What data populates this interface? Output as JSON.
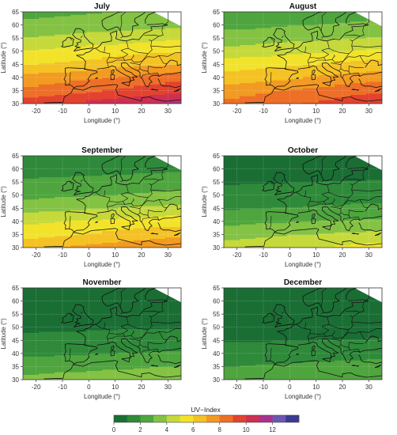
{
  "panels": [
    {
      "title": "July",
      "month_index": 0
    },
    {
      "title": "August",
      "month_index": 1
    },
    {
      "title": "September",
      "month_index": 2
    },
    {
      "title": "October",
      "month_index": 3
    },
    {
      "title": "November",
      "month_index": 4
    },
    {
      "title": "December",
      "month_index": 5
    }
  ],
  "axes": {
    "xlabel": "Longitude (°)",
    "ylabel": "Latitude (°)",
    "x_ticks": [
      -20,
      -10,
      0,
      10,
      20,
      30
    ],
    "y_ticks": [
      30,
      35,
      40,
      45,
      50,
      55,
      60,
      65
    ],
    "x_range": [
      -25,
      35
    ],
    "y_range": [
      30,
      65
    ]
  },
  "legend": {
    "title": "UV−Index",
    "ticks": [
      0,
      2,
      4,
      6,
      8,
      10,
      12
    ],
    "range": [
      0,
      13
    ],
    "colors": [
      "#1a6e34",
      "#2f8a3a",
      "#4fa53e",
      "#84c244",
      "#c6d93a",
      "#f2e32a",
      "#f4c224",
      "#f29a22",
      "#ee6f27",
      "#e2432f",
      "#cf2f52",
      "#a8338c",
      "#6b57b0",
      "#3b3c8e"
    ]
  },
  "chart_data": {
    "type": "heatmap",
    "variable": "UV−Index",
    "months": [
      "July",
      "August",
      "September",
      "October",
      "November",
      "December"
    ],
    "latitudes": [
      30,
      35,
      40,
      45,
      50,
      55,
      60,
      65
    ],
    "uv_index_by_latitude": [
      {
        "month": "July",
        "values": [
          10.5,
          9,
          8,
          6.5,
          5.5,
          4.5,
          3.5,
          3
        ]
      },
      {
        "month": "August",
        "values": [
          9,
          8.2,
          7,
          6,
          4.8,
          3.8,
          3,
          2.4
        ]
      },
      {
        "month": "September",
        "values": [
          7.5,
          6.2,
          5.2,
          4,
          3,
          2.4,
          1.7,
          1.2
        ]
      },
      {
        "month": "October",
        "values": [
          5,
          4,
          3,
          2.1,
          1.5,
          1,
          0.6,
          0.3
        ]
      },
      {
        "month": "November",
        "values": [
          3.6,
          2.8,
          2,
          1.4,
          0.9,
          0.5,
          0.3,
          0.2
        ]
      },
      {
        "month": "December",
        "values": [
          2.8,
          2.2,
          1.6,
          1,
          0.6,
          0.3,
          0.2,
          0.1
        ]
      }
    ],
    "xlim": [
      -25,
      35
    ],
    "ylim": [
      30,
      65
    ],
    "colorbar_ticks": [
      0,
      2,
      4,
      6,
      8,
      10,
      12
    ],
    "grid": true
  }
}
